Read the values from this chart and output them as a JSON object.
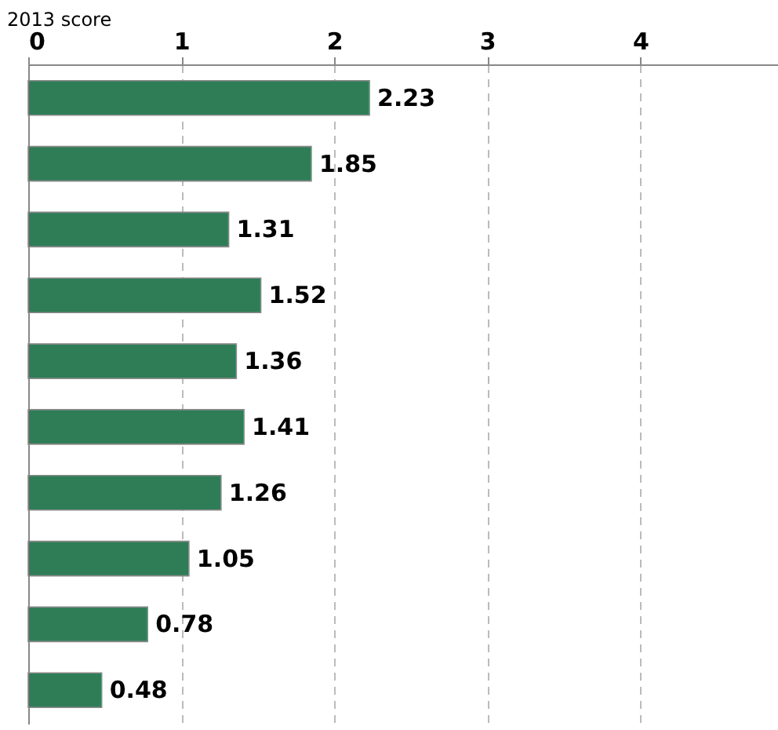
{
  "chart_data": {
    "type": "bar",
    "orientation": "horizontal",
    "xlabel": "2013 score",
    "categories": [
      null,
      null,
      null,
      null,
      null,
      null,
      null,
      null,
      null,
      null
    ],
    "values": [
      2.23,
      1.85,
      1.31,
      1.52,
      1.36,
      1.41,
      1.26,
      1.05,
      0.78,
      0.48
    ],
    "color": "#2e7d57",
    "xlim": [
      0,
      4.9
    ],
    "xticks": [
      0,
      1,
      2,
      3,
      4
    ],
    "grid": "x",
    "data_labels": true,
    "tick_labels": "x"
  }
}
